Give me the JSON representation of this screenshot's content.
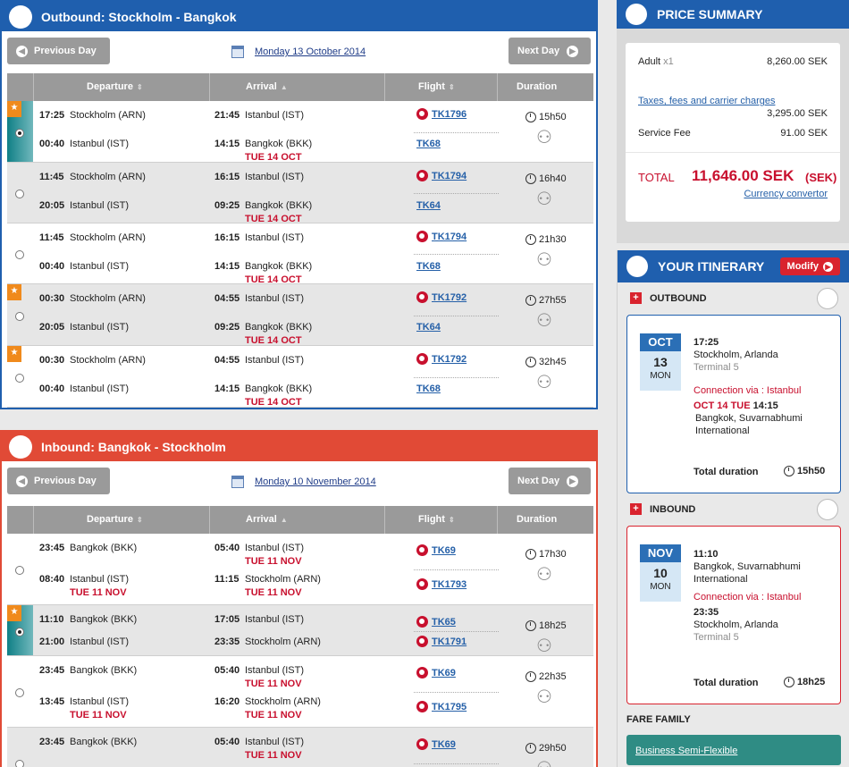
{
  "outbound": {
    "title": "Outbound: Stockholm - Bangkok",
    "prev_label": "Previous Day",
    "next_label": "Next Day",
    "date_label": "Monday 13 October 2014",
    "columns": [
      "Departure",
      "Arrival",
      "Flight",
      "Duration"
    ],
    "rows": [
      {
        "selected": true,
        "badge": true,
        "dep1_time": "17:25",
        "dep1_place": "Stockholm (ARN)",
        "arr1_time": "21:45",
        "arr1_place": "Istanbul (IST)",
        "flight1": "TK1796",
        "dep2_time": "00:40",
        "dep2_place": "Istanbul (IST)",
        "dep2_date": "",
        "arr2_time": "14:15",
        "arr2_place": "Bangkok (BKK)",
        "arr2_date": "TUE 14 OCT",
        "flight2": "TK68",
        "duration": "15h50"
      },
      {
        "selected": false,
        "badge": false,
        "dep1_time": "11:45",
        "dep1_place": "Stockholm (ARN)",
        "arr1_time": "16:15",
        "arr1_place": "Istanbul (IST)",
        "flight1": "TK1794",
        "dep2_time": "20:05",
        "dep2_place": "Istanbul (IST)",
        "dep2_date": "",
        "arr2_time": "09:25",
        "arr2_place": "Bangkok (BKK)",
        "arr2_date": "TUE 14 OCT",
        "flight2": "TK64",
        "duration": "16h40"
      },
      {
        "selected": false,
        "badge": false,
        "dep1_time": "11:45",
        "dep1_place": "Stockholm (ARN)",
        "arr1_time": "16:15",
        "arr1_place": "Istanbul (IST)",
        "flight1": "TK1794",
        "dep2_time": "00:40",
        "dep2_place": "Istanbul (IST)",
        "dep2_date": "",
        "arr2_time": "14:15",
        "arr2_place": "Bangkok (BKK)",
        "arr2_date": "TUE 14 OCT",
        "flight2": "TK68",
        "duration": "21h30"
      },
      {
        "selected": false,
        "badge": true,
        "dep1_time": "00:30",
        "dep1_place": "Stockholm (ARN)",
        "arr1_time": "04:55",
        "arr1_place": "Istanbul (IST)",
        "flight1": "TK1792",
        "dep2_time": "20:05",
        "dep2_place": "Istanbul (IST)",
        "dep2_date": "",
        "arr2_time": "09:25",
        "arr2_place": "Bangkok (BKK)",
        "arr2_date": "TUE 14 OCT",
        "flight2": "TK64",
        "duration": "27h55"
      },
      {
        "selected": false,
        "badge": true,
        "dep1_time": "00:30",
        "dep1_place": "Stockholm (ARN)",
        "arr1_time": "04:55",
        "arr1_place": "Istanbul (IST)",
        "flight1": "TK1792",
        "dep2_time": "00:40",
        "dep2_place": "Istanbul (IST)",
        "dep2_date": "",
        "arr2_time": "14:15",
        "arr2_place": "Bangkok (BKK)",
        "arr2_date": "TUE 14 OCT",
        "flight2": "TK68",
        "duration": "32h45"
      }
    ]
  },
  "inbound": {
    "title": "Inbound: Bangkok - Stockholm",
    "prev_label": "Previous Day",
    "next_label": "Next Day",
    "date_label": "Monday 10 November 2014",
    "columns": [
      "Departure",
      "Arrival",
      "Flight",
      "Duration"
    ],
    "rows": [
      {
        "selected": false,
        "badge": false,
        "dep1_time": "23:45",
        "dep1_place": "Bangkok (BKK)",
        "arr1_time": "05:40",
        "arr1_place": "Istanbul (IST)",
        "arr1_date": "TUE 11 NOV",
        "flight1": "TK69",
        "dep2_time": "08:40",
        "dep2_place": "Istanbul (IST)",
        "dep2_date": "TUE 11 NOV",
        "arr2_time": "11:15",
        "arr2_place": "Stockholm (ARN)",
        "arr2_date": "TUE 11 NOV",
        "flight2": "TK1793",
        "duration": "17h30"
      },
      {
        "selected": true,
        "badge": true,
        "dep1_time": "11:10",
        "dep1_place": "Bangkok (BKK)",
        "arr1_time": "17:05",
        "arr1_place": "Istanbul (IST)",
        "arr1_date": "",
        "flight1": "TK65",
        "dep2_time": "21:00",
        "dep2_place": "Istanbul (IST)",
        "dep2_date": "",
        "arr2_time": "23:35",
        "arr2_place": "Stockholm (ARN)",
        "arr2_date": "",
        "flight2": "TK1791",
        "duration": "18h25"
      },
      {
        "selected": false,
        "badge": false,
        "dep1_time": "23:45",
        "dep1_place": "Bangkok (BKK)",
        "arr1_time": "05:40",
        "arr1_place": "Istanbul (IST)",
        "arr1_date": "TUE 11 NOV",
        "flight1": "TK69",
        "dep2_time": "13:45",
        "dep2_place": "Istanbul (IST)",
        "dep2_date": "TUE 11 NOV",
        "arr2_time": "16:20",
        "arr2_place": "Stockholm (ARN)",
        "arr2_date": "TUE 11 NOV",
        "flight2": "TK1795",
        "duration": "22h35"
      },
      {
        "selected": false,
        "badge": false,
        "dep1_time": "23:45",
        "dep1_place": "Bangkok (BKK)",
        "arr1_time": "05:40",
        "arr1_place": "Istanbul (IST)",
        "arr1_date": "TUE 11 NOV",
        "flight1": "TK69",
        "dep2_time": "",
        "dep2_place": "",
        "dep2_date": "",
        "arr2_time": "",
        "arr2_place": "",
        "arr2_date": "",
        "flight2": "",
        "duration": "29h50"
      }
    ]
  },
  "price_summary": {
    "title": "PRICE SUMMARY",
    "adult_label": "Adult",
    "adult_count": "x1",
    "adult_value": "8,260.00 SEK",
    "taxes_label": "Taxes, fees and carrier charges",
    "taxes_value": "3,295.00 SEK",
    "service_label": "Service Fee",
    "service_value": "91.00 SEK",
    "total_label": "TOTAL",
    "total_value": "11,646.00 SEK",
    "total_currency": "(SEK)",
    "converter_label": "Currency convertor"
  },
  "itinerary": {
    "title": "YOUR ITINERARY",
    "modify_label": "Modify",
    "outbound": {
      "label": "OUTBOUND",
      "month": "OCT",
      "day": "13",
      "weekday": "MON",
      "dep_time": "17:25",
      "dep_place": "Stockholm, Arlanda",
      "dep_terminal": "Terminal 5",
      "connection": "Connection via : Istanbul",
      "arr_date": "OCT 14 TUE",
      "arr_time": "14:15",
      "arr_place": "Bangkok, Suvarnabhumi International",
      "total_label": "Total duration",
      "total_value": "15h50"
    },
    "inbound": {
      "label": "INBOUND",
      "month": "NOV",
      "day": "10",
      "weekday": "MON",
      "dep_time": "11:10",
      "dep_place": "Bangkok, Suvarnabhumi International",
      "connection": "Connection via : Istanbul",
      "arr_time": "23:35",
      "arr_place": "Stockholm, Arlanda",
      "arr_terminal": "Terminal 5",
      "total_label": "Total duration",
      "total_value": "18h25"
    },
    "fare_family_label": "FARE FAMILY",
    "fare_family_value": "Business Semi-Flexible"
  },
  "icons": {
    "plane": "plane-icon",
    "calendar": "calendar-icon",
    "clock": "clock-icon",
    "walker": "transfer-walker-icon",
    "star": "star-icon",
    "airline": "turkish-airlines-logo-icon"
  },
  "colors": {
    "outbound": "#1f5fae",
    "inbound": "#e14a36",
    "accent_red": "#c8102e",
    "fare": "#2f8c84"
  }
}
